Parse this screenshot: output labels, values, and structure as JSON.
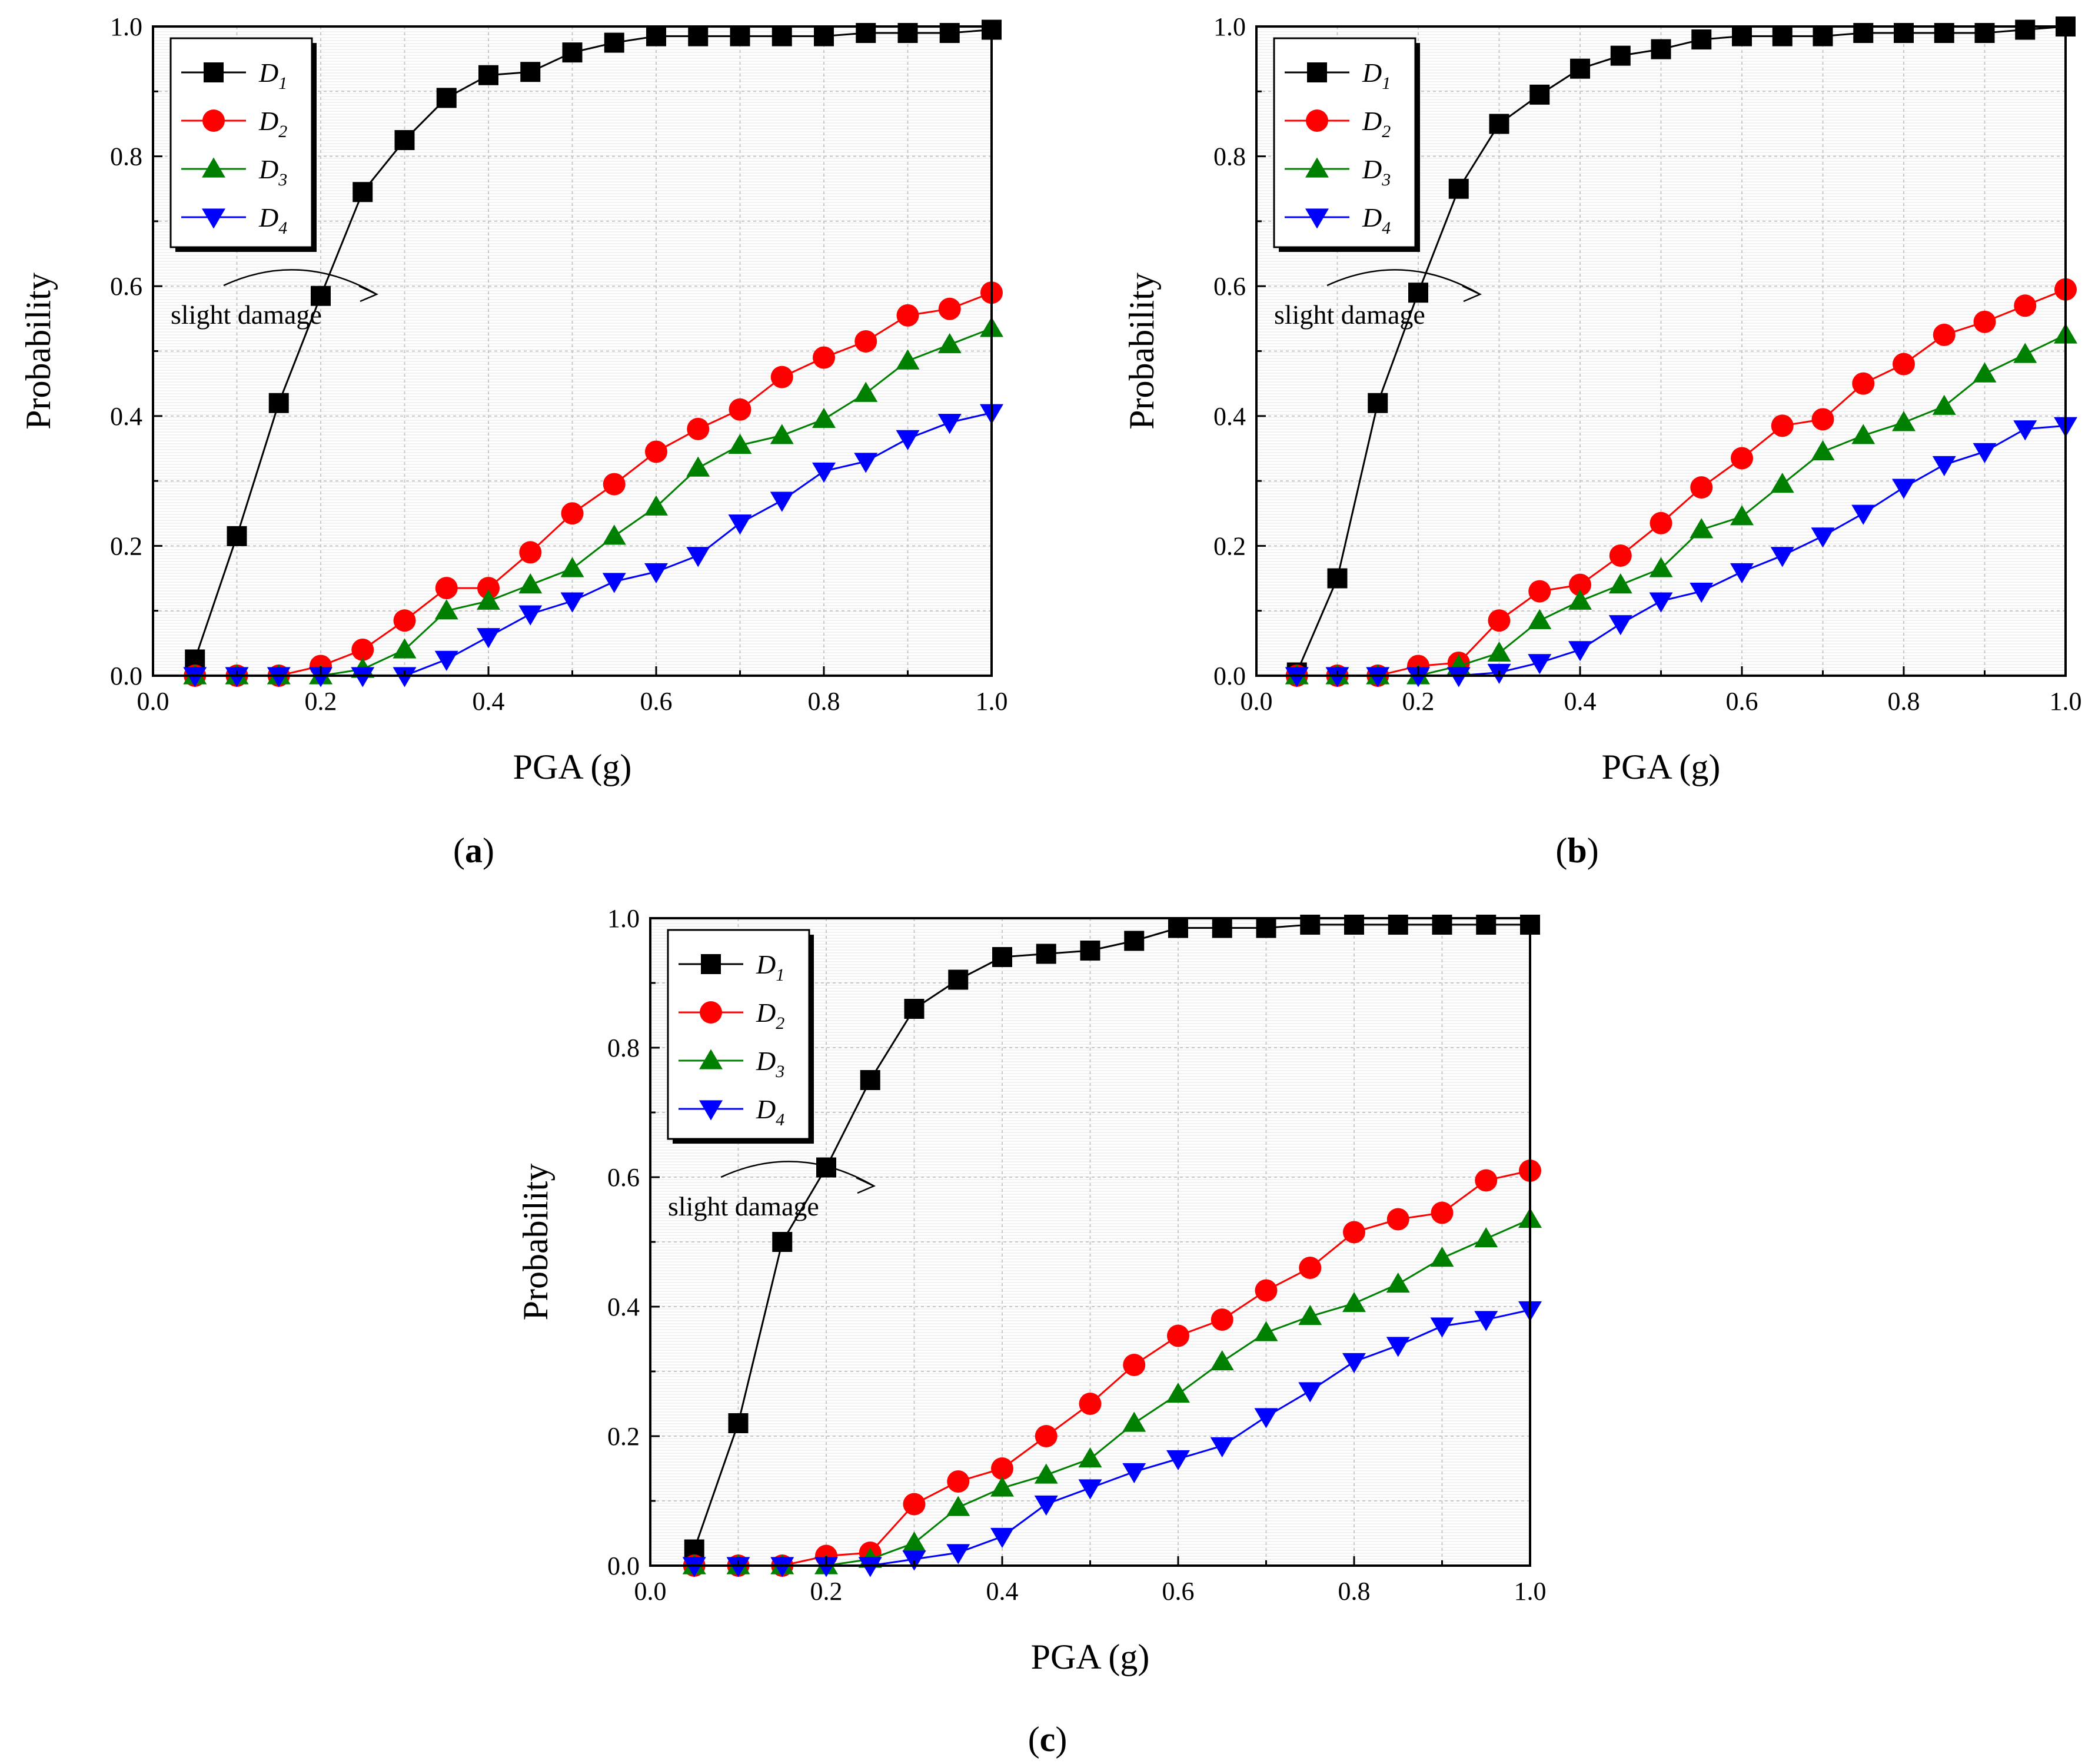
{
  "figure": {
    "captions": [
      "(a)",
      "(b)",
      "(c)"
    ]
  },
  "chart_data": [
    {
      "type": "line",
      "panel": "(a)",
      "xlabel": "PGA (g)",
      "ylabel": "Probability",
      "xlim": [
        0.0,
        1.0
      ],
      "ylim": [
        0.0,
        1.0
      ],
      "xticks": [
        "0.0",
        "0.2",
        "0.4",
        "0.6",
        "0.8",
        "1.0"
      ],
      "yticks": [
        "0.0",
        "0.2",
        "0.4",
        "0.6",
        "0.8",
        "1.0"
      ],
      "grid": true,
      "legend": "top-left",
      "annotation": "slight damage",
      "x": [
        0.05,
        0.1,
        0.15,
        0.2,
        0.25,
        0.3,
        0.35,
        0.4,
        0.45,
        0.5,
        0.55,
        0.6,
        0.65,
        0.7,
        0.75,
        0.8,
        0.85,
        0.9,
        0.95,
        1.0
      ],
      "series": [
        {
          "name": "D",
          "sub": "1",
          "color": "#000000",
          "marker": "square",
          "values": [
            0.025,
            0.215,
            0.42,
            0.585,
            0.745,
            0.825,
            0.89,
            0.925,
            0.93,
            0.96,
            0.975,
            0.985,
            0.985,
            0.985,
            0.985,
            0.985,
            0.99,
            0.99,
            0.99,
            0.995
          ]
        },
        {
          "name": "D",
          "sub": "2",
          "color": "#ff0000",
          "marker": "circle",
          "values": [
            0.0,
            0.0,
            0.0,
            0.015,
            0.04,
            0.085,
            0.135,
            0.135,
            0.19,
            0.25,
            0.295,
            0.345,
            0.38,
            0.41,
            0.46,
            0.49,
            0.515,
            0.555,
            0.565,
            0.59
          ]
        },
        {
          "name": "D",
          "sub": "3",
          "color": "#008000",
          "marker": "triangle-up",
          "values": [
            0.0,
            0.0,
            0.0,
            0.0,
            0.01,
            0.04,
            0.1,
            0.115,
            0.14,
            0.165,
            0.215,
            0.26,
            0.32,
            0.355,
            0.37,
            0.395,
            0.435,
            0.485,
            0.51,
            0.535
          ]
        },
        {
          "name": "D",
          "sub": "4",
          "color": "#0000ff",
          "marker": "triangle-down",
          "values": [
            0.0,
            0.0,
            0.0,
            0.0,
            0.0,
            0.0,
            0.025,
            0.06,
            0.095,
            0.115,
            0.145,
            0.16,
            0.185,
            0.235,
            0.27,
            0.315,
            0.33,
            0.365,
            0.39,
            0.405
          ]
        }
      ]
    },
    {
      "type": "line",
      "panel": "(b)",
      "xlabel": "PGA (g)",
      "ylabel": "Probability",
      "xlim": [
        0.0,
        1.0
      ],
      "ylim": [
        0.0,
        1.0
      ],
      "xticks": [
        "0.0",
        "0.2",
        "0.4",
        "0.6",
        "0.8",
        "1.0"
      ],
      "yticks": [
        "0.0",
        "0.2",
        "0.4",
        "0.6",
        "0.8",
        "1.0"
      ],
      "grid": true,
      "legend": "top-left",
      "annotation": "slight damage",
      "x": [
        0.05,
        0.1,
        0.15,
        0.2,
        0.25,
        0.3,
        0.35,
        0.4,
        0.45,
        0.5,
        0.55,
        0.6,
        0.65,
        0.7,
        0.75,
        0.8,
        0.85,
        0.9,
        0.95,
        1.0
      ],
      "series": [
        {
          "name": "D",
          "sub": "1",
          "color": "#000000",
          "marker": "square",
          "values": [
            0.005,
            0.15,
            0.42,
            0.59,
            0.75,
            0.85,
            0.895,
            0.935,
            0.955,
            0.965,
            0.98,
            0.985,
            0.985,
            0.985,
            0.99,
            0.99,
            0.99,
            0.99,
            0.995,
            1.0
          ]
        },
        {
          "name": "D",
          "sub": "2",
          "color": "#ff0000",
          "marker": "circle",
          "values": [
            0.0,
            0.0,
            0.0,
            0.015,
            0.02,
            0.085,
            0.13,
            0.14,
            0.185,
            0.235,
            0.29,
            0.335,
            0.385,
            0.395,
            0.45,
            0.48,
            0.525,
            0.545,
            0.57,
            0.595
          ]
        },
        {
          "name": "D",
          "sub": "3",
          "color": "#008000",
          "marker": "triangle-up",
          "values": [
            0.0,
            0.0,
            0.0,
            0.0,
            0.015,
            0.035,
            0.085,
            0.115,
            0.14,
            0.165,
            0.225,
            0.245,
            0.295,
            0.345,
            0.37,
            0.39,
            0.415,
            0.465,
            0.495,
            0.525
          ]
        },
        {
          "name": "D",
          "sub": "4",
          "color": "#0000ff",
          "marker": "triangle-down",
          "values": [
            0.0,
            0.0,
            0.0,
            0.0,
            0.0,
            0.005,
            0.02,
            0.04,
            0.08,
            0.115,
            0.13,
            0.16,
            0.185,
            0.215,
            0.25,
            0.29,
            0.325,
            0.345,
            0.38,
            0.385
          ]
        }
      ]
    },
    {
      "type": "line",
      "panel": "(c)",
      "xlabel": "PGA (g)",
      "ylabel": "Probability",
      "xlim": [
        0.0,
        1.0
      ],
      "ylim": [
        0.0,
        1.0
      ],
      "xticks": [
        "0.0",
        "0.2",
        "0.4",
        "0.6",
        "0.8",
        "1.0"
      ],
      "yticks": [
        "0.0",
        "0.2",
        "0.4",
        "0.6",
        "0.8",
        "1.0"
      ],
      "grid": true,
      "legend": "top-left",
      "annotation": "slight damage",
      "x": [
        0.05,
        0.1,
        0.15,
        0.2,
        0.25,
        0.3,
        0.35,
        0.4,
        0.45,
        0.5,
        0.55,
        0.6,
        0.65,
        0.7,
        0.75,
        0.8,
        0.85,
        0.9,
        0.95,
        1.0
      ],
      "series": [
        {
          "name": "D",
          "sub": "1",
          "color": "#000000",
          "marker": "square",
          "values": [
            0.025,
            0.22,
            0.5,
            0.615,
            0.75,
            0.86,
            0.905,
            0.94,
            0.945,
            0.95,
            0.965,
            0.985,
            0.985,
            0.985,
            0.99,
            0.99,
            0.99,
            0.99,
            0.99,
            0.99
          ]
        },
        {
          "name": "D",
          "sub": "2",
          "color": "#ff0000",
          "marker": "circle",
          "values": [
            0.0,
            0.0,
            0.0,
            0.015,
            0.02,
            0.095,
            0.13,
            0.15,
            0.2,
            0.25,
            0.31,
            0.355,
            0.38,
            0.425,
            0.46,
            0.515,
            0.535,
            0.545,
            0.595,
            0.61
          ]
        },
        {
          "name": "D",
          "sub": "3",
          "color": "#008000",
          "marker": "triangle-up",
          "values": [
            0.0,
            0.0,
            0.0,
            0.0,
            0.01,
            0.035,
            0.09,
            0.12,
            0.14,
            0.165,
            0.22,
            0.265,
            0.315,
            0.36,
            0.385,
            0.405,
            0.435,
            0.475,
            0.505,
            0.535
          ]
        },
        {
          "name": "D",
          "sub": "4",
          "color": "#0000ff",
          "marker": "triangle-down",
          "values": [
            0.0,
            0.0,
            0.0,
            0.0,
            0.0,
            0.01,
            0.02,
            0.045,
            0.095,
            0.12,
            0.145,
            0.165,
            0.185,
            0.23,
            0.27,
            0.315,
            0.34,
            0.37,
            0.38,
            0.395
          ]
        }
      ]
    }
  ]
}
